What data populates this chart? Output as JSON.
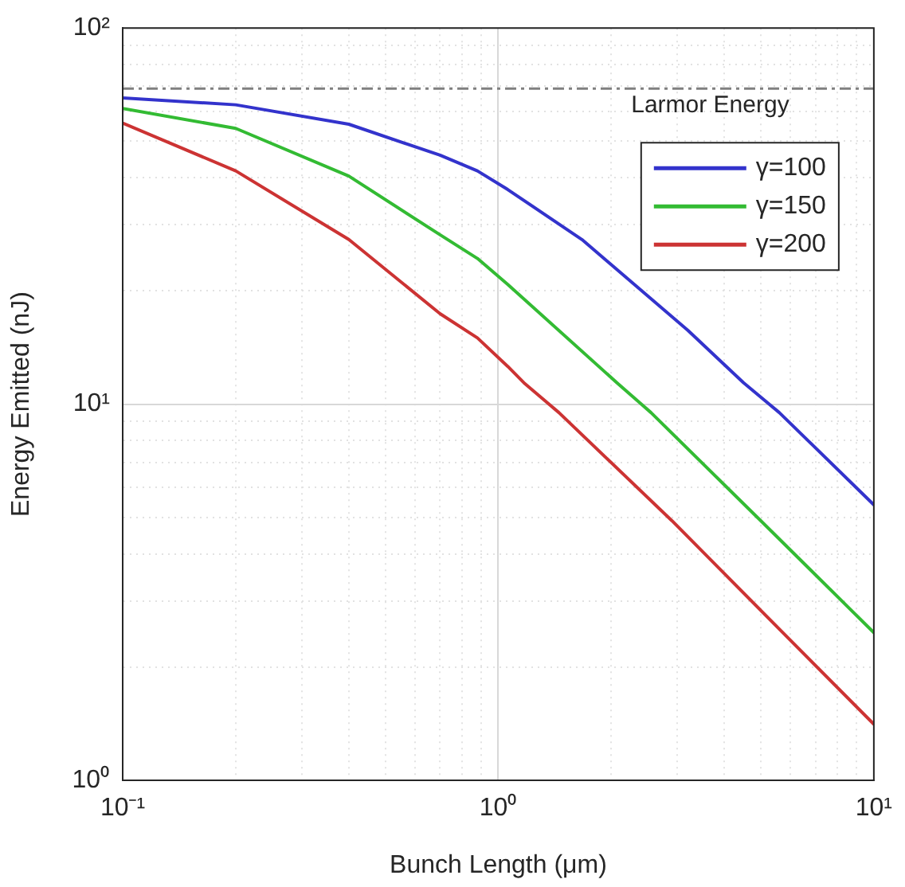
{
  "chart_data": {
    "type": "line",
    "xlabel": "Bunch Length (μm)",
    "ylabel": "Energy Emitted (nJ)",
    "log": "xy",
    "grid": true,
    "legend": "top right",
    "marker": "none",
    "line_style": "solid",
    "xlim": [
      0.1,
      10
    ],
    "ylim": [
      1,
      100
    ],
    "xticks": [
      {
        "value": 0.1,
        "label": "10⁻¹"
      },
      {
        "value": 0.2,
        "label": null
      },
      {
        "value": 0.3,
        "label": null
      },
      {
        "value": 0.4,
        "label": null
      },
      {
        "value": 0.5,
        "label": null
      },
      {
        "value": 0.6,
        "label": null
      },
      {
        "value": 0.7,
        "label": null
      },
      {
        "value": 0.8,
        "label": null
      },
      {
        "value": 0.9,
        "label": null
      },
      {
        "value": 1,
        "label": "10⁰"
      },
      {
        "value": 2,
        "label": null
      },
      {
        "value": 3,
        "label": null
      },
      {
        "value": 4,
        "label": null
      },
      {
        "value": 5,
        "label": null
      },
      {
        "value": 6,
        "label": null
      },
      {
        "value": 7,
        "label": null
      },
      {
        "value": 8,
        "label": null
      },
      {
        "value": 9,
        "label": null
      },
      {
        "value": 10,
        "label": "10¹"
      }
    ],
    "yticks": [
      {
        "value": 1,
        "label": "10⁰"
      },
      {
        "value": 2,
        "label": null
      },
      {
        "value": 3,
        "label": null
      },
      {
        "value": 4,
        "label": null
      },
      {
        "value": 5,
        "label": null
      },
      {
        "value": 6,
        "label": null
      },
      {
        "value": 7,
        "label": null
      },
      {
        "value": 8,
        "label": null
      },
      {
        "value": 9,
        "label": null
      },
      {
        "value": 10,
        "label": "10¹"
      },
      {
        "value": 20,
        "label": null
      },
      {
        "value": 30,
        "label": null
      },
      {
        "value": 40,
        "label": null
      },
      {
        "value": 50,
        "label": null
      },
      {
        "value": 60,
        "label": null
      },
      {
        "value": 70,
        "label": null
      },
      {
        "value": 80,
        "label": null
      },
      {
        "value": 90,
        "label": null
      },
      {
        "value": 100,
        "label": "10²"
      }
    ],
    "series": [
      {
        "name": "γ=100",
        "color": "#3333cc",
        "x": [
          0.1,
          0.2,
          0.4,
          0.7,
          0.88,
          1.06,
          1.67,
          3.2,
          4.5,
          5.6,
          10
        ],
        "values": [
          65.2,
          62.5,
          55.5,
          45.9,
          41.7,
          37.2,
          27.4,
          15.7,
          11.4,
          9.5,
          5.4
        ]
      },
      {
        "name": "γ=150",
        "color": "#33bb33",
        "x": [
          0.1,
          0.2,
          0.4,
          0.7,
          0.88,
          1.06,
          2.07,
          2.55,
          5.0,
          10
        ],
        "values": [
          61.1,
          54.1,
          40.4,
          28.2,
          24.4,
          20.8,
          11.4,
          9.5,
          4.9,
          2.47
        ]
      },
      {
        "name": "γ=200",
        "color": "#cc3333",
        "x": [
          0.1,
          0.2,
          0.4,
          0.7,
          0.88,
          1.06,
          1.17,
          1.45,
          2.9,
          5.0,
          10
        ],
        "values": [
          55.9,
          41.7,
          27.4,
          17.4,
          15.0,
          12.6,
          11.4,
          9.5,
          4.9,
          2.83,
          1.41
        ]
      }
    ],
    "ref_lines": [
      {
        "axis": "y",
        "value": 69,
        "label": "Larmor Energy",
        "color": "#808080",
        "line_style": "dashed"
      }
    ]
  }
}
